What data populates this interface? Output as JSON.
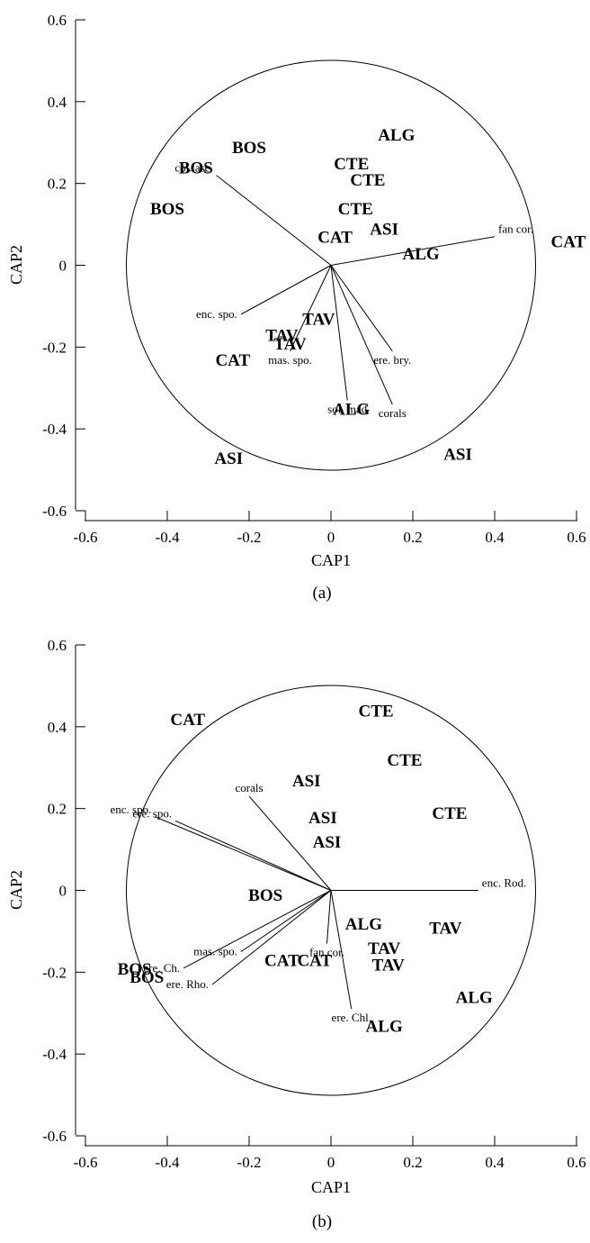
{
  "chart_data": [
    {
      "type": "scatter",
      "panel_label": "(a)",
      "xlabel": "CAP1",
      "ylabel": "CAP2",
      "xlim": [
        -0.6,
        0.6
      ],
      "ylim": [
        -0.6,
        0.6
      ],
      "x_ticks": [
        "-0.6",
        "-0.4",
        "-0.2",
        "0",
        "0.2",
        "0.4",
        "0.6"
      ],
      "y_ticks": [
        "0.6",
        "0.4",
        "0.2",
        "0",
        "-0.2",
        "-0.4",
        "-0.6"
      ],
      "grid": false,
      "circle_radius": 0.5,
      "points": [
        {
          "label": "ALG",
          "x": 0.16,
          "y": 0.32
        },
        {
          "label": "BOS",
          "x": -0.2,
          "y": 0.29
        },
        {
          "label": "CTE",
          "x": 0.05,
          "y": 0.25
        },
        {
          "label": "BOS",
          "x": -0.33,
          "y": 0.24
        },
        {
          "label": "CTE",
          "x": 0.09,
          "y": 0.21
        },
        {
          "label": "BOS",
          "x": -0.4,
          "y": 0.14
        },
        {
          "label": "CTE",
          "x": 0.06,
          "y": 0.14
        },
        {
          "label": "ASI",
          "x": 0.13,
          "y": 0.09
        },
        {
          "label": "CAT",
          "x": 0.01,
          "y": 0.07
        },
        {
          "label": "CAT",
          "x": 0.58,
          "y": 0.06
        },
        {
          "label": "ALG",
          "x": 0.22,
          "y": 0.03
        },
        {
          "label": "TAV",
          "x": -0.03,
          "y": -0.13
        },
        {
          "label": "TAV",
          "x": -0.12,
          "y": -0.17
        },
        {
          "label": "TAV",
          "x": -0.1,
          "y": -0.19
        },
        {
          "label": "CAT",
          "x": -0.24,
          "y": -0.23
        },
        {
          "label": "ALG",
          "x": 0.05,
          "y": -0.35
        },
        {
          "label": "ASI",
          "x": -0.25,
          "y": -0.47
        },
        {
          "label": "ASI",
          "x": 0.31,
          "y": -0.46
        }
      ],
      "vectors": [
        {
          "label": "col. asc.",
          "x": -0.28,
          "y": 0.22
        },
        {
          "label": "fan cor.",
          "x": 0.4,
          "y": 0.07
        },
        {
          "label": "enc. spo.",
          "x": -0.22,
          "y": -0.12
        },
        {
          "label": "ere. bry.",
          "x": 0.15,
          "y": -0.21
        },
        {
          "label": "mas. spo.",
          "x": -0.1,
          "y": -0.21
        },
        {
          "label": "corals",
          "x": 0.15,
          "y": -0.34
        },
        {
          "label": "sol. mad",
          "x": 0.04,
          "y": -0.33
        }
      ]
    },
    {
      "type": "scatter",
      "panel_label": "(b)",
      "xlabel": "CAP1",
      "ylabel": "CAP2",
      "xlim": [
        -0.6,
        0.6
      ],
      "ylim": [
        -0.6,
        0.6
      ],
      "x_ticks": [
        "-0.6",
        "-0.4",
        "-0.2",
        "0",
        "0.2",
        "0.4",
        "0.6"
      ],
      "y_ticks": [
        "0.6",
        "0.4",
        "0.2",
        "0",
        "-0.2",
        "-0.4",
        "-0.6"
      ],
      "grid": false,
      "circle_radius": 0.5,
      "points": [
        {
          "label": "CTE",
          "x": 0.11,
          "y": 0.44
        },
        {
          "label": "CAT",
          "x": -0.35,
          "y": 0.42
        },
        {
          "label": "CTE",
          "x": 0.18,
          "y": 0.32
        },
        {
          "label": "ASI",
          "x": -0.06,
          "y": 0.27
        },
        {
          "label": "CTE",
          "x": 0.29,
          "y": 0.19
        },
        {
          "label": "ASI",
          "x": -0.02,
          "y": 0.18
        },
        {
          "label": "ASI",
          "x": -0.01,
          "y": 0.12
        },
        {
          "label": "BOS",
          "x": -0.16,
          "y": -0.01
        },
        {
          "label": "ALG",
          "x": 0.08,
          "y": -0.08
        },
        {
          "label": "TAV",
          "x": 0.28,
          "y": -0.09
        },
        {
          "label": "TAV",
          "x": 0.13,
          "y": -0.14
        },
        {
          "label": "TAV",
          "x": 0.14,
          "y": -0.18
        },
        {
          "label": "CAT",
          "x": -0.12,
          "y": -0.17
        },
        {
          "label": "CAT",
          "x": -0.04,
          "y": -0.17
        },
        {
          "label": "BOS",
          "x": -0.48,
          "y": -0.19
        },
        {
          "label": "BOS",
          "x": -0.45,
          "y": -0.21
        },
        {
          "label": "ALG",
          "x": 0.35,
          "y": -0.26
        },
        {
          "label": "ALG",
          "x": 0.13,
          "y": -0.33
        }
      ],
      "vectors": [
        {
          "label": "corals",
          "x": -0.2,
          "y": 0.23
        },
        {
          "label": "enc. spo.",
          "x": -0.43,
          "y": 0.18
        },
        {
          "label": "ere. spo.",
          "x": -0.38,
          "y": 0.17
        },
        {
          "label": "enc. Rod.",
          "x": 0.36,
          "y": 0.0
        },
        {
          "label": "mas. spo.",
          "x": -0.22,
          "y": -0.15
        },
        {
          "label": "fan cor.",
          "x": -0.01,
          "y": -0.13
        },
        {
          "label": "ere. Ch.",
          "x": -0.36,
          "y": -0.19
        },
        {
          "label": "ere. Rho.",
          "x": -0.29,
          "y": -0.23
        },
        {
          "label": "ere. Chl.",
          "x": 0.05,
          "y": -0.29
        }
      ]
    }
  ]
}
